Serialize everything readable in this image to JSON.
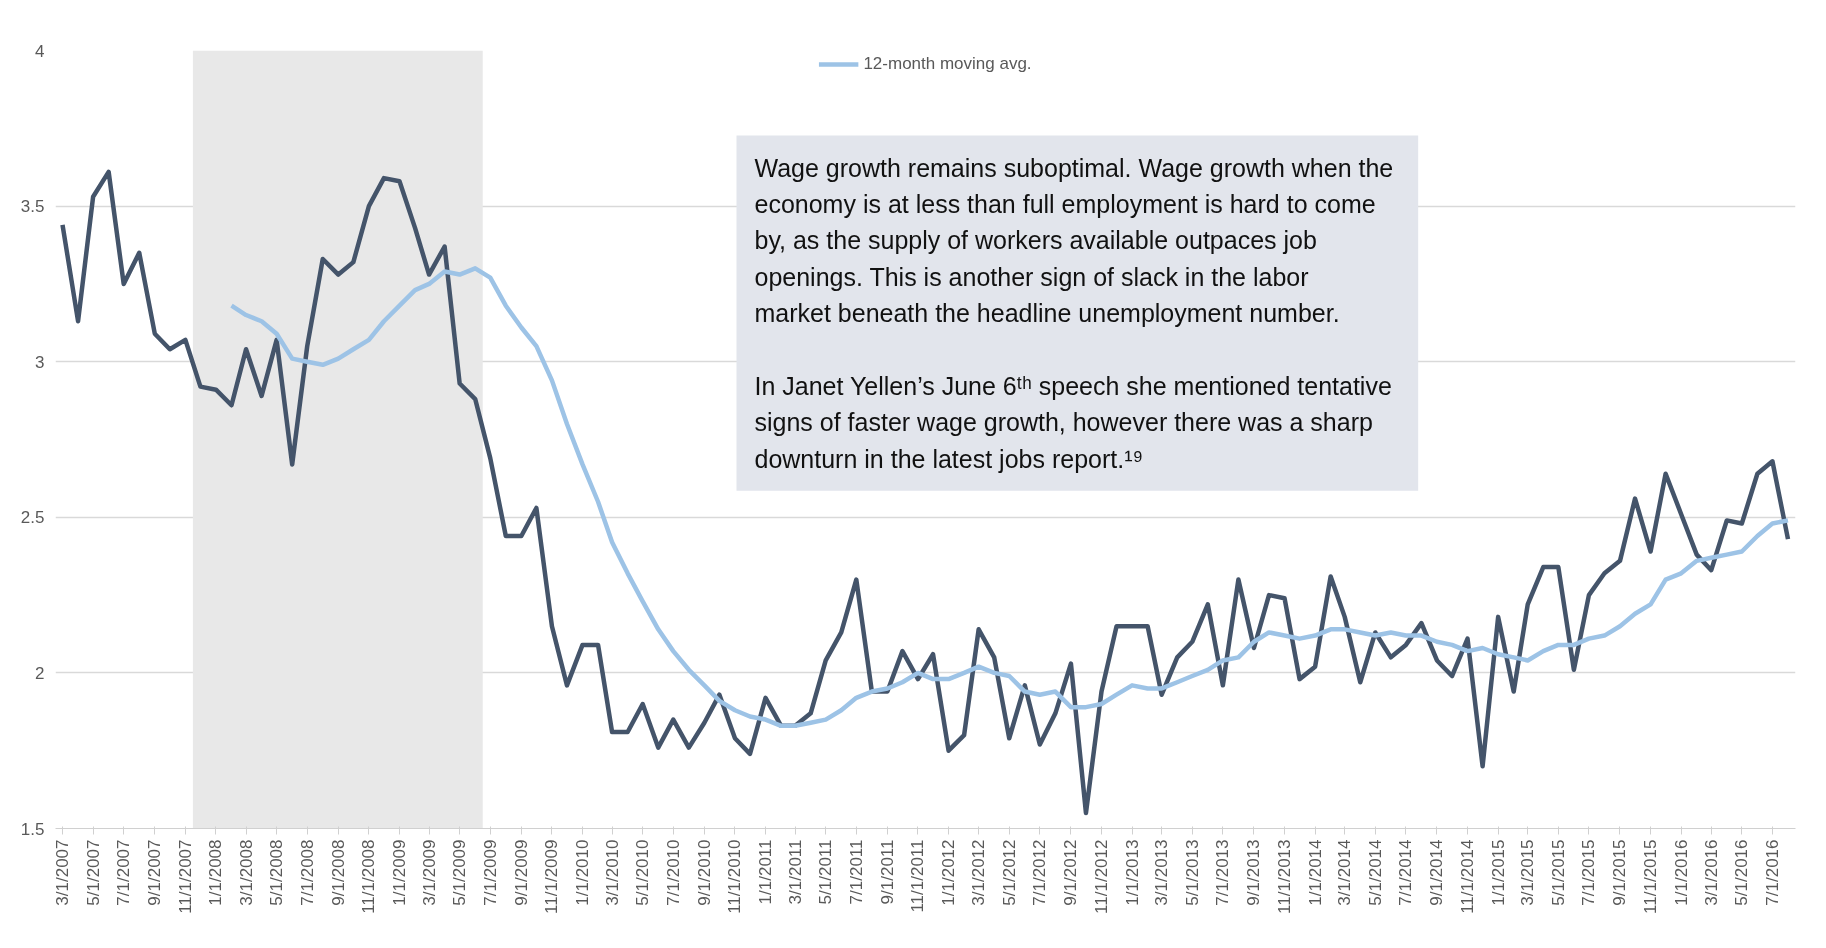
{
  "chart_data": {
    "type": "line",
    "x": [
      "2007-03",
      "2007-04",
      "2007-05",
      "2007-06",
      "2007-07",
      "2007-08",
      "2007-09",
      "2007-10",
      "2007-11",
      "2007-12",
      "2008-01",
      "2008-02",
      "2008-03",
      "2008-04",
      "2008-05",
      "2008-06",
      "2008-07",
      "2008-08",
      "2008-09",
      "2008-10",
      "2008-11",
      "2008-12",
      "2009-01",
      "2009-02",
      "2009-03",
      "2009-04",
      "2009-05",
      "2009-06",
      "2009-07",
      "2009-08",
      "2009-09",
      "2009-10",
      "2009-11",
      "2009-12",
      "2010-01",
      "2010-02",
      "2010-03",
      "2010-04",
      "2010-05",
      "2010-06",
      "2010-07",
      "2010-08",
      "2010-09",
      "2010-10",
      "2010-11",
      "2010-12",
      "2011-01",
      "2011-02",
      "2011-03",
      "2011-04",
      "2011-05",
      "2011-06",
      "2011-07",
      "2011-08",
      "2011-09",
      "2011-10",
      "2011-11",
      "2011-12",
      "2012-01",
      "2012-02",
      "2012-03",
      "2012-04",
      "2012-05",
      "2012-06",
      "2012-07",
      "2012-08",
      "2012-09",
      "2012-10",
      "2012-11",
      "2012-12",
      "2013-01",
      "2013-02",
      "2013-03",
      "2013-04",
      "2013-05",
      "2013-06",
      "2013-07",
      "2013-08",
      "2013-09",
      "2013-10",
      "2013-11",
      "2013-12",
      "2014-01",
      "2014-02",
      "2014-03",
      "2014-04",
      "2014-05",
      "2014-06",
      "2014-07",
      "2014-08",
      "2014-09",
      "2014-10",
      "2014-11",
      "2014-12",
      "2015-01",
      "2015-02",
      "2015-03",
      "2015-04",
      "2015-05",
      "2015-06",
      "2015-07",
      "2015-08",
      "2015-09",
      "2015-10",
      "2015-11",
      "2015-12",
      "2016-01",
      "2016-02",
      "2016-03",
      "2016-04",
      "2016-05",
      "2016-06",
      "2016-07",
      "2016-08"
    ],
    "series": [
      {
        "color": "#44546a",
        "values": [
          3.44,
          3.13,
          3.53,
          3.61,
          3.25,
          3.35,
          3.09,
          3.04,
          3.07,
          2.92,
          2.91,
          2.86,
          3.04,
          2.89,
          3.07,
          2.67,
          3.05,
          3.33,
          3.28,
          3.32,
          3.5,
          3.59,
          3.58,
          3.43,
          3.28,
          3.37,
          2.93,
          2.88,
          2.69,
          2.44,
          2.44,
          2.53,
          2.15,
          1.96,
          2.09,
          2.09,
          1.81,
          1.81,
          1.9,
          1.76,
          1.85,
          1.76,
          1.84,
          1.93,
          1.79,
          1.74,
          1.92,
          1.83,
          1.83,
          1.87,
          2.04,
          2.13,
          2.3,
          1.94,
          1.94,
          2.07,
          1.98,
          2.06,
          1.75,
          1.8,
          2.14,
          2.05,
          1.79,
          1.96,
          1.77,
          1.87,
          2.03,
          1.55,
          1.94,
          2.15,
          2.15,
          2.15,
          1.93,
          2.05,
          2.1,
          2.22,
          1.96,
          2.3,
          2.08,
          2.25,
          2.24,
          1.98,
          2.02,
          2.31,
          2.18,
          1.97,
          2.13,
          2.05,
          2.09,
          2.16,
          2.04,
          1.99,
          2.11,
          1.7,
          2.18,
          1.94,
          2.22,
          2.34,
          2.34,
          2.01,
          2.25,
          2.32,
          2.36,
          2.56,
          2.39,
          2.64,
          2.51,
          2.38,
          2.33,
          2.49,
          2.48,
          2.64,
          2.68,
          2.43
        ]
      },
      {
        "name": "12-month moving avg.",
        "color": "#9dc3e6",
        "values": [
          null,
          null,
          null,
          null,
          null,
          null,
          null,
          null,
          null,
          null,
          null,
          3.18,
          3.15,
          3.13,
          3.09,
          3.01,
          3.0,
          2.99,
          3.01,
          3.04,
          3.07,
          3.13,
          3.18,
          3.23,
          3.25,
          3.29,
          3.28,
          3.3,
          3.27,
          3.18,
          3.11,
          3.05,
          2.94,
          2.8,
          2.67,
          2.55,
          2.42,
          2.32,
          2.23,
          2.14,
          2.07,
          2.01,
          1.96,
          1.91,
          1.88,
          1.86,
          1.85,
          1.83,
          1.83,
          1.84,
          1.85,
          1.88,
          1.92,
          1.94,
          1.95,
          1.97,
          2.0,
          1.98,
          1.98,
          2.0,
          2.02,
          2.0,
          1.99,
          1.94,
          1.93,
          1.94,
          1.89,
          1.89,
          1.9,
          1.93,
          1.96,
          1.95,
          1.95,
          1.97,
          1.99,
          2.01,
          2.04,
          2.05,
          2.1,
          2.13,
          2.12,
          2.11,
          2.12,
          2.14,
          2.14,
          2.13,
          2.12,
          2.13,
          2.12,
          2.12,
          2.1,
          2.09,
          2.07,
          2.08,
          2.06,
          2.05,
          2.04,
          2.07,
          2.09,
          2.09,
          2.11,
          2.12,
          2.15,
          2.19,
          2.22,
          2.3,
          2.32,
          2.36,
          2.37,
          2.38,
          2.39,
          2.44,
          2.48,
          2.49
        ]
      }
    ],
    "xlim": [
      "2007-02-15",
      "2016-08-16"
    ],
    "xticks": [
      {
        "value": "2007-03-01",
        "label": "3/1/2007"
      },
      {
        "value": "2007-05-01",
        "label": "5/1/2007"
      },
      {
        "value": "2007-07-01",
        "label": "7/1/2007"
      },
      {
        "value": "2007-09-01",
        "label": "9/1/2007"
      },
      {
        "value": "2007-11-01",
        "label": "11/1/2007"
      },
      {
        "value": "2008-01-01",
        "label": "1/1/2008"
      },
      {
        "value": "2008-03-01",
        "label": "3/1/2008"
      },
      {
        "value": "2008-05-01",
        "label": "5/1/2008"
      },
      {
        "value": "2008-07-01",
        "label": "7/1/2008"
      },
      {
        "value": "2008-09-01",
        "label": "9/1/2008"
      },
      {
        "value": "2008-11-01",
        "label": "11/1/2008"
      },
      {
        "value": "2009-01-01",
        "label": "1/1/2009"
      },
      {
        "value": "2009-03-01",
        "label": "3/1/2009"
      },
      {
        "value": "2009-05-01",
        "label": "5/1/2009"
      },
      {
        "value": "2009-07-01",
        "label": "7/1/2009"
      },
      {
        "value": "2009-09-01",
        "label": "9/1/2009"
      },
      {
        "value": "2009-11-01",
        "label": "11/1/2009"
      },
      {
        "value": "2010-01-01",
        "label": "1/1/2010"
      },
      {
        "value": "2010-03-01",
        "label": "3/1/2010"
      },
      {
        "value": "2010-05-01",
        "label": "5/1/2010"
      },
      {
        "value": "2010-07-01",
        "label": "7/1/2010"
      },
      {
        "value": "2010-09-01",
        "label": "9/1/2010"
      },
      {
        "value": "2010-11-01",
        "label": "11/1/2010"
      },
      {
        "value": "2011-01-01",
        "label": "1/1/2011"
      },
      {
        "value": "2011-03-01",
        "label": "3/1/2011"
      },
      {
        "value": "2011-05-01",
        "label": "5/1/2011"
      },
      {
        "value": "2011-07-01",
        "label": "7/1/2011"
      },
      {
        "value": "2011-09-01",
        "label": "9/1/2011"
      },
      {
        "value": "2011-11-01",
        "label": "11/1/2011"
      },
      {
        "value": "2012-01-01",
        "label": "1/1/2012"
      },
      {
        "value": "2012-03-01",
        "label": "3/1/2012"
      },
      {
        "value": "2012-05-01",
        "label": "5/1/2012"
      },
      {
        "value": "2012-07-01",
        "label": "7/1/2012"
      },
      {
        "value": "2012-09-01",
        "label": "9/1/2012"
      },
      {
        "value": "2012-11-01",
        "label": "11/1/2012"
      },
      {
        "value": "2013-01-01",
        "label": "1/1/2013"
      },
      {
        "value": "2013-03-01",
        "label": "3/1/2013"
      },
      {
        "value": "2013-05-01",
        "label": "5/1/2013"
      },
      {
        "value": "2013-07-01",
        "label": "7/1/2013"
      },
      {
        "value": "2013-09-01",
        "label": "9/1/2013"
      },
      {
        "value": "2013-11-01",
        "label": "11/1/2013"
      },
      {
        "value": "2014-01-01",
        "label": "1/1/2014"
      },
      {
        "value": "2014-03-01",
        "label": "3/1/2014"
      },
      {
        "value": "2014-05-01",
        "label": "5/1/2014"
      },
      {
        "value": "2014-07-01",
        "label": "7/1/2014"
      },
      {
        "value": "2014-09-01",
        "label": "9/1/2014"
      },
      {
        "value": "2014-11-01",
        "label": "11/1/2014"
      },
      {
        "value": "2015-01-01",
        "label": "1/1/2015"
      },
      {
        "value": "2015-03-01",
        "label": "3/1/2015"
      },
      {
        "value": "2015-05-01",
        "label": "5/1/2015"
      },
      {
        "value": "2015-07-01",
        "label": "7/1/2015"
      },
      {
        "value": "2015-09-01",
        "label": "9/1/2015"
      },
      {
        "value": "2015-11-01",
        "label": "11/1/2015"
      },
      {
        "value": "2016-01-01",
        "label": "1/1/2016"
      },
      {
        "value": "2016-03-01",
        "label": "3/1/2016"
      },
      {
        "value": "2016-05-01",
        "label": "5/1/2016"
      },
      {
        "value": "2016-07-01",
        "label": "7/1/2016"
      }
    ],
    "ylim": [
      1.5,
      4
    ],
    "yticks": [
      1.5,
      2,
      2.5,
      3,
      3.5,
      4
    ],
    "bands": [
      {
        "axis": "x",
        "from": "2007-11-16",
        "to": "2009-06-16",
        "color": "#e8e8e8"
      }
    ],
    "annotations": [
      "Wage growth remains suboptimal.  Wage growth when the economy is at less than full employment is hard to come by, as the supply of workers available outpaces job openings. This is another sign of slack in the labor market beneath the headline unemployment number.",
      "In Janet Yellen’s June 6ᵗʰ speech she mentioned tentative signs of faster wage growth, however there was a sharp downturn in the latest jobs report.¹⁹"
    ],
    "grid": "y",
    "legend": "top",
    "marker": "none",
    "line_style": "solid"
  }
}
